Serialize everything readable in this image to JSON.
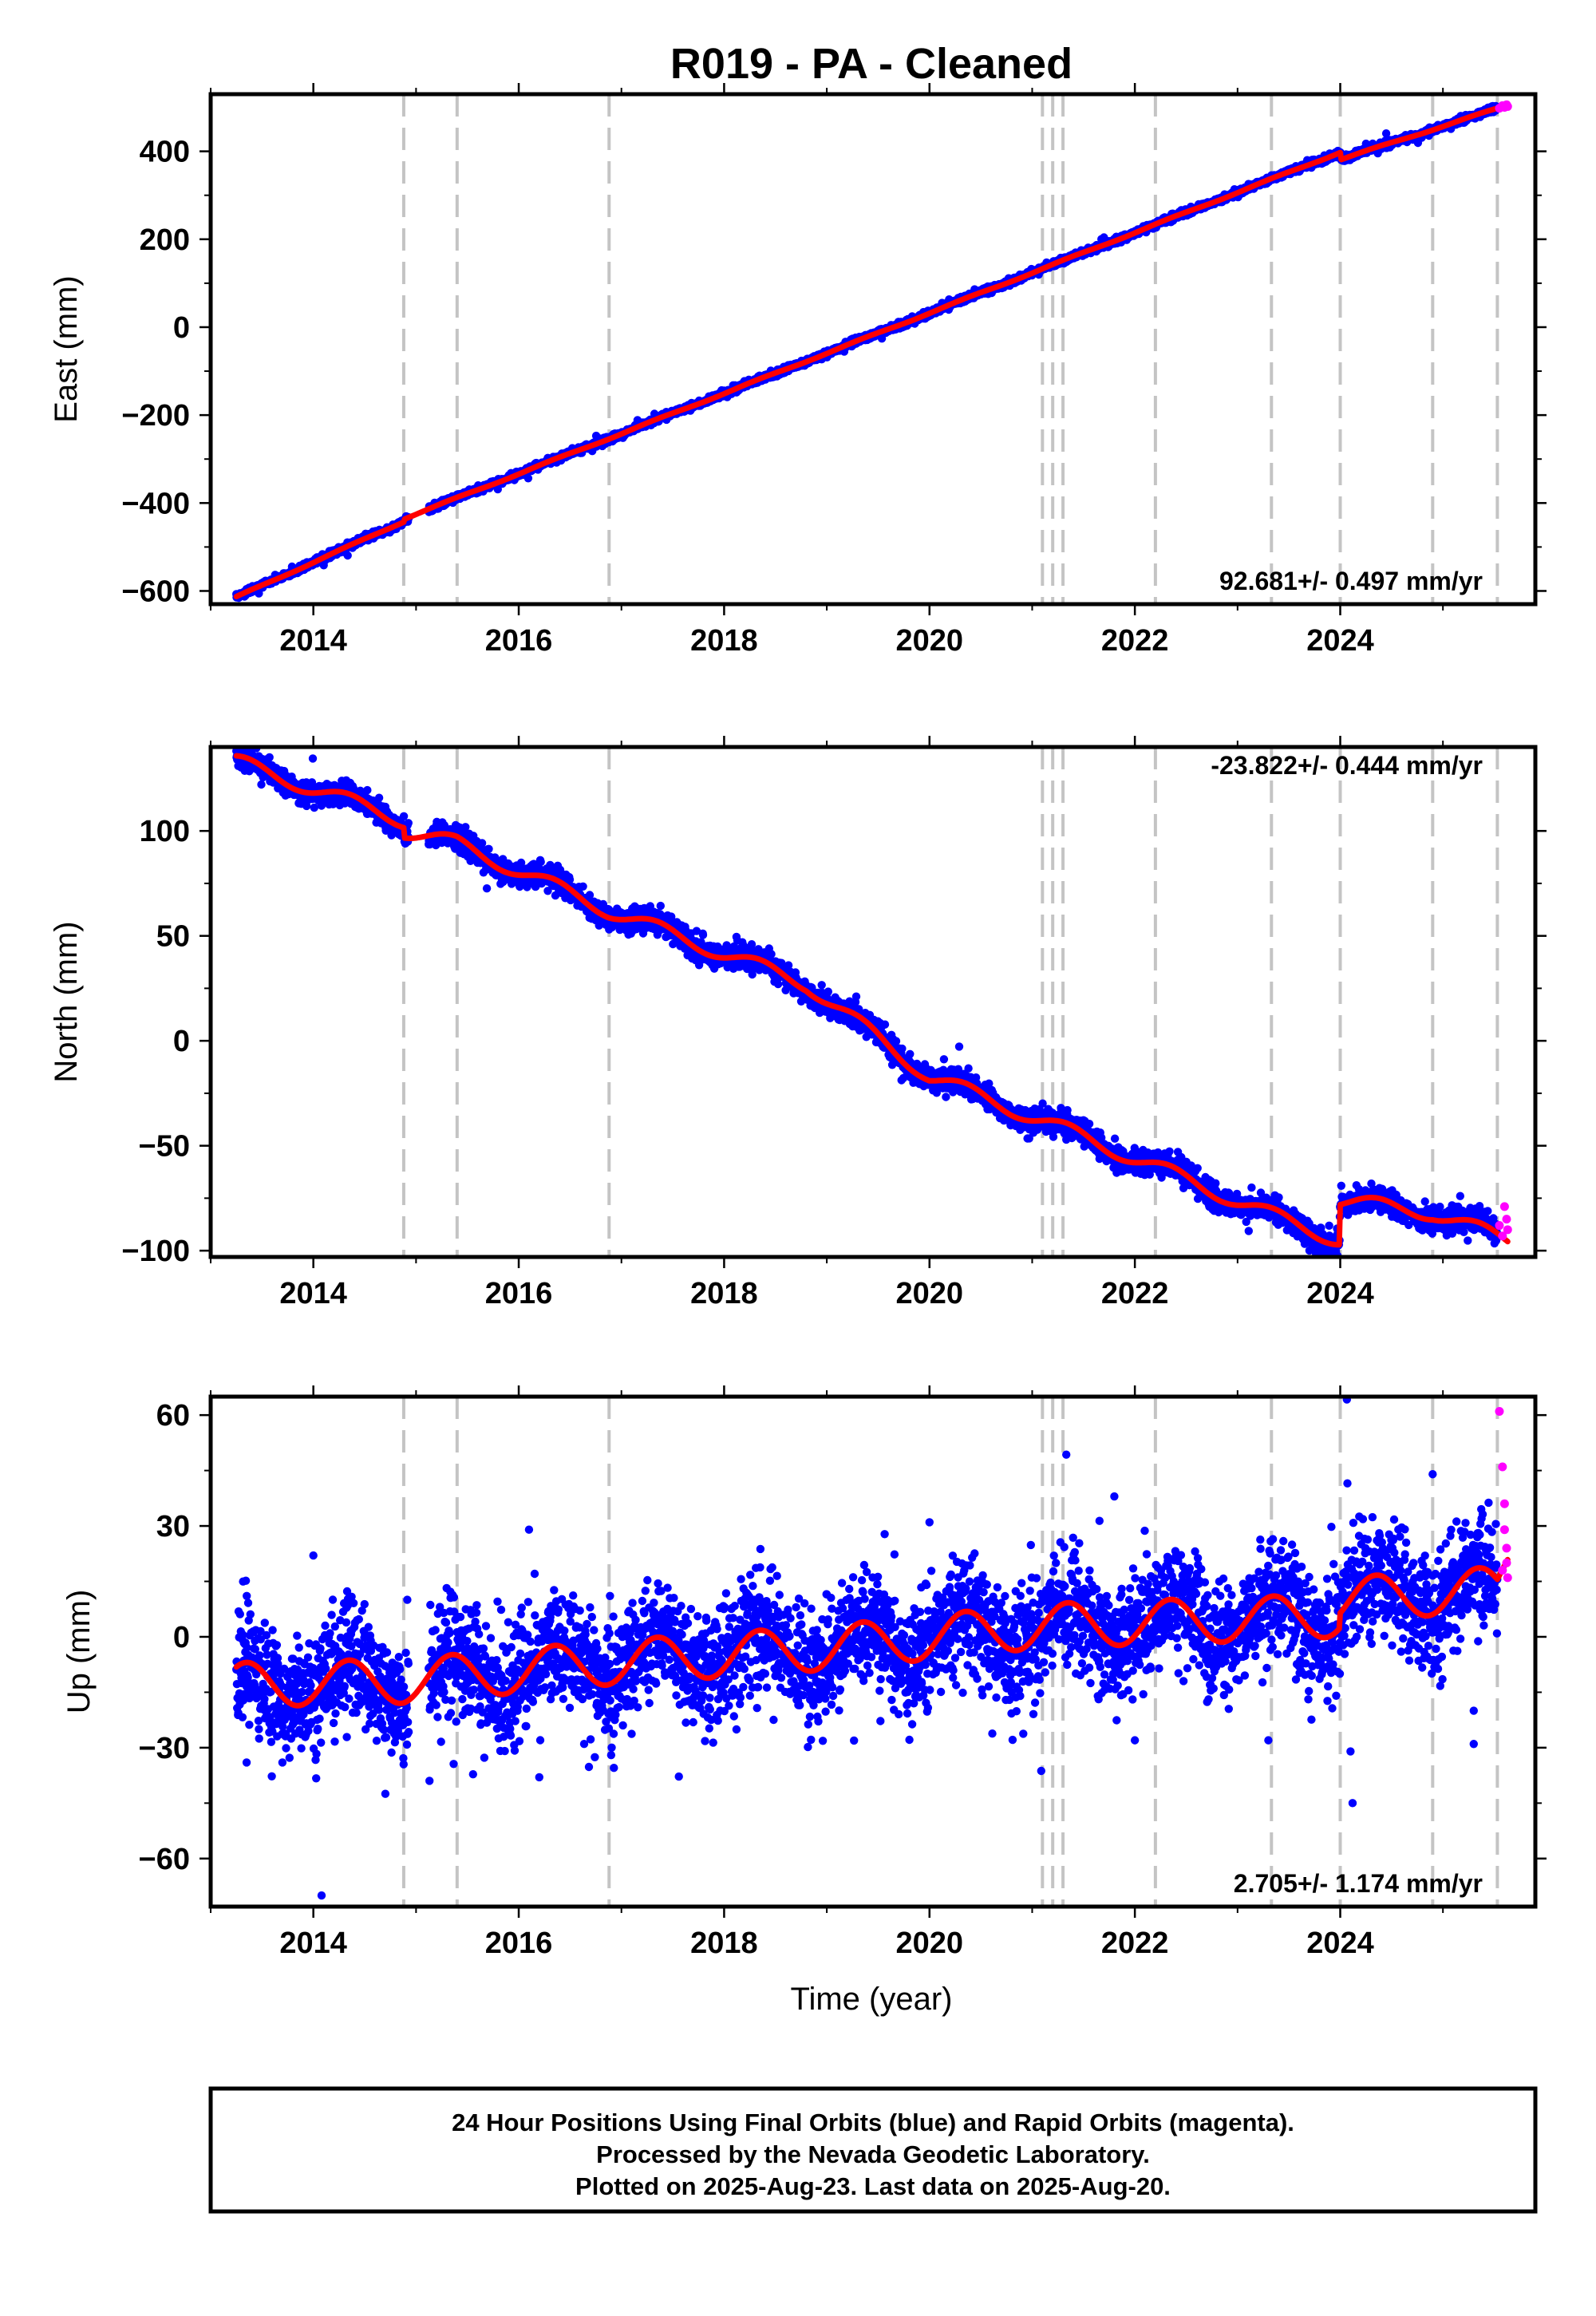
{
  "colors": {
    "final": "#0000ff",
    "rapid": "#ff00ff",
    "fit": "#ff0000",
    "breaks": "#c4c4c4"
  },
  "chart_data": {
    "type": "scatter",
    "title": "R019  - PA - Cleaned",
    "xlabel": "Time (year)",
    "xlim": [
      2013.0,
      2025.9
    ],
    "xticks": [
      2014,
      2016,
      2018,
      2020,
      2022,
      2024
    ],
    "xticklabels": [
      "2014",
      "2016",
      "2018",
      "2020",
      "2022",
      "2024"
    ],
    "grid": false,
    "breaks": [
      2014.88,
      2015.4,
      2016.88,
      2021.1,
      2021.2,
      2021.3,
      2022.2,
      2023.33,
      2024.0,
      2024.9,
      2025.53
    ],
    "panels": [
      {
        "name": "east",
        "ylabel": "East (mm)",
        "ylim": [
          -630,
          530
        ],
        "yticks": [
          -600,
          -400,
          -200,
          0,
          200,
          400
        ],
        "yticklabels": [
          "−600",
          "−400",
          "−200",
          "0",
          "200",
          "400"
        ],
        "rate_label": "92.681+/- 0.497 mm/yr",
        "rate_position": "bottom-right",
        "trend": {
          "t": [
            2013.25,
            2014.88,
            2014.89,
            2024.0,
            2024.01,
            2025.63
          ],
          "v": [
            -614,
            -442,
            -435,
            398,
            382,
            505
          ]
        },
        "noise": 3.5,
        "seasonal_amp": 1.5,
        "rapid": [
          [
            2025.55,
            498
          ],
          [
            2025.58,
            504
          ],
          [
            2025.6,
            500
          ],
          [
            2025.62,
            506
          ],
          [
            2025.63,
            502
          ]
        ]
      },
      {
        "name": "north",
        "ylabel": "North (mm)",
        "ylim": [
          -103,
          140
        ],
        "yticks": [
          -100,
          -50,
          0,
          50,
          100
        ],
        "yticklabels": [
          "−100",
          "−50",
          "0",
          "50",
          "100"
        ],
        "rate_label": "-23.822+/- 0.444 mm/yr",
        "rate_position": "top-right",
        "trend": {
          "t": [
            2013.25,
            2014.88,
            2014.89,
            2015.4,
            2016.88,
            2018.8,
            2020.0,
            2021.1,
            2022.2,
            2023.33,
            2023.99,
            2024.0,
            2024.9,
            2025.63
          ],
          "v": [
            133,
            105,
            100,
            94,
            62,
            27,
            -17,
            -38,
            -60,
            -83,
            -95,
            -76,
            -82,
            -95
          ]
        },
        "noise": 2.8,
        "seasonal_amp": 3.5,
        "rapid": [
          [
            2025.55,
            -88
          ],
          [
            2025.58,
            -93
          ],
          [
            2025.6,
            -79
          ],
          [
            2025.62,
            -85
          ],
          [
            2025.63,
            -90
          ]
        ]
      },
      {
        "name": "up",
        "ylabel": "Up (mm)",
        "ylim": [
          -73,
          65
        ],
        "yticks": [
          -60,
          -30,
          0,
          30,
          60
        ],
        "yticklabels": [
          "−60",
          "−30",
          "0",
          "30",
          "60"
        ],
        "rate_label": "2.705+/- 1.174 mm/yr",
        "rate_position": "bottom-right",
        "trend": {
          "t": [
            2013.25,
            2014.88,
            2016.88,
            2019.0,
            2021.1,
            2023.33,
            2023.99,
            2024.0,
            2025.53,
            2025.63
          ],
          "v": [
            -13,
            -12,
            -7,
            -3,
            3,
            5,
            6,
            10,
            13,
            22
          ]
        },
        "noise": 7.5,
        "seasonal_amp": 6.0,
        "outliers": [
          [
            2014.08,
            -70
          ],
          [
            2014.0,
            22
          ],
          [
            2016.2,
            -38
          ],
          [
            2013.35,
            -34
          ],
          [
            2021.8,
            38
          ],
          [
            2022.0,
            -28
          ],
          [
            2023.3,
            -28
          ],
          [
            2024.1,
            -31
          ],
          [
            2024.12,
            -45
          ],
          [
            2024.9,
            44
          ],
          [
            2025.3,
            -20
          ],
          [
            2025.3,
            -29
          ],
          [
            2016.9,
            -32
          ],
          [
            2020.0,
            31
          ],
          [
            2016.1,
            29
          ]
        ],
        "rapid": [
          [
            2025.55,
            61
          ],
          [
            2025.58,
            46
          ],
          [
            2025.6,
            36
          ],
          [
            2025.6,
            29
          ],
          [
            2025.62,
            24
          ],
          [
            2025.62,
            20
          ],
          [
            2025.63,
            16
          ],
          [
            2025.58,
            18
          ]
        ]
      }
    ],
    "footnote": [
      "24 Hour Positions Using Final Orbits (blue) and Rapid Orbits (magenta).",
      "Processed by the Nevada Geodetic Laboratory.",
      "Plotted on 2025-Aug-23. Last data on 2025-Aug-20."
    ]
  }
}
